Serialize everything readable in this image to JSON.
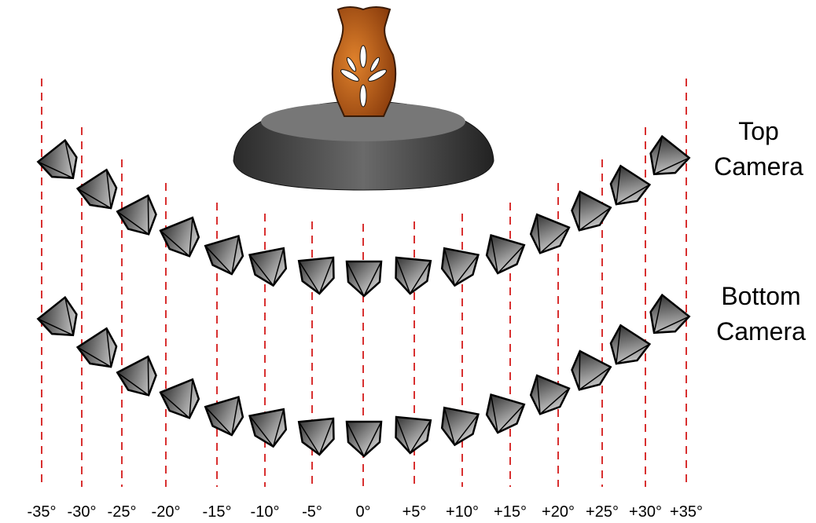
{
  "angle_labels": [
    "-35°",
    "-30°",
    "-25°",
    "-20°",
    "-15°",
    "-10°",
    "-5°",
    "0°",
    "+5°",
    "+10°",
    "+15°",
    "+20°",
    "+25°",
    "+30°",
    "+35°"
  ],
  "row_labels": {
    "top": [
      "Top",
      "Camera"
    ],
    "bottom": [
      "Bottom",
      "Camera"
    ]
  }
}
